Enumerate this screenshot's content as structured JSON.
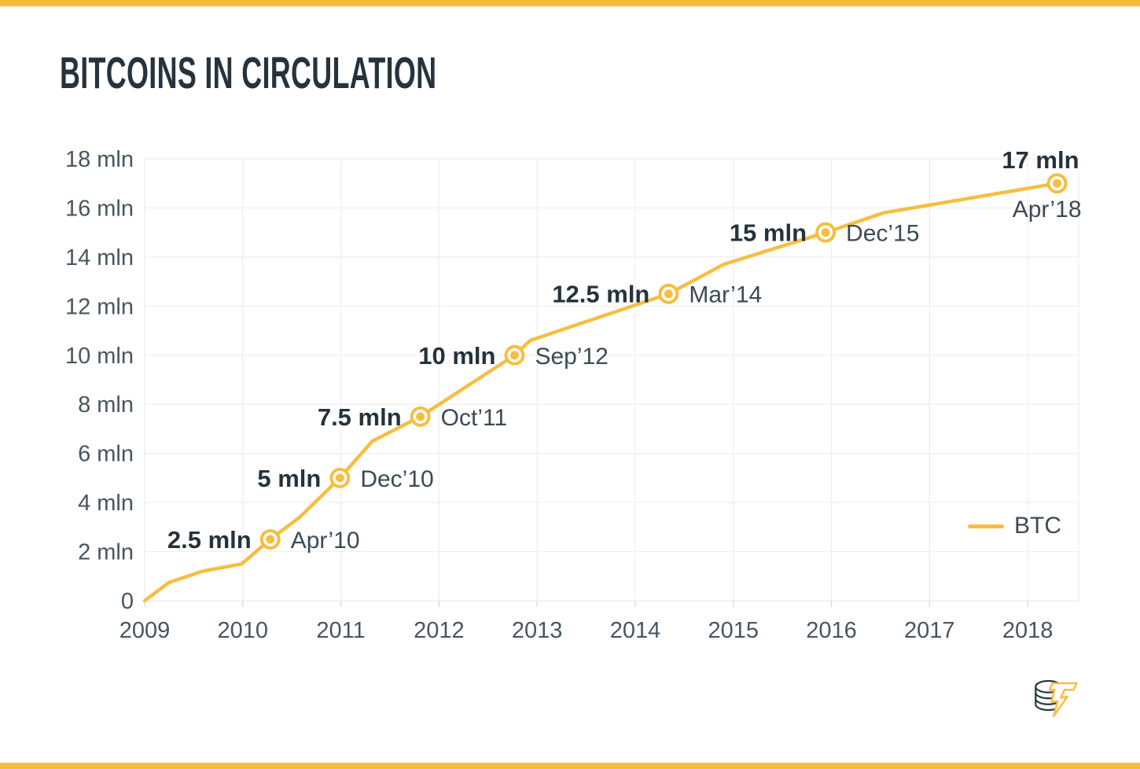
{
  "page": {
    "title": "BITCOINS IN CIRCULATION"
  },
  "theme": {
    "accent": "#F6BE41",
    "bar": "#F7BD37",
    "grid": "#EEEEEE",
    "tick": "#D9DDE0",
    "axis_text": "#46565F",
    "value_text": "#25323B",
    "date_text": "#3A4A53",
    "logo_coins": "#2C3A43",
    "logo_bolt": "#F6BE41"
  },
  "legend": {
    "label": "BTC"
  },
  "logo": {
    "icon": "coin-stack-lightning"
  },
  "chart_data": {
    "type": "line",
    "title": "BITCOINS IN CIRCULATION",
    "unit": "mln BTC",
    "xlim": [
      2009,
      2018.52
    ],
    "ylim": [
      0,
      18
    ],
    "grid": true,
    "legend_position": "right-middle",
    "x_ticks": [
      {
        "label": "2009",
        "year": 2009
      },
      {
        "label": "2010",
        "year": 2010
      },
      {
        "label": "2011",
        "year": 2011
      },
      {
        "label": "2012",
        "year": 2012
      },
      {
        "label": "2013",
        "year": 2013
      },
      {
        "label": "2014",
        "year": 2014
      },
      {
        "label": "2015",
        "year": 2015
      },
      {
        "label": "2016",
        "year": 2016
      },
      {
        "label": "2017",
        "year": 2017
      },
      {
        "label": "2018",
        "year": 2018
      }
    ],
    "y_ticks": [
      {
        "label": "0",
        "value": 0
      },
      {
        "label": "2 mln",
        "value": 2
      },
      {
        "label": "4 mln",
        "value": 4
      },
      {
        "label": "6 mln",
        "value": 6
      },
      {
        "label": "8 mln",
        "value": 8
      },
      {
        "label": "10 mln",
        "value": 10
      },
      {
        "label": "12 mln",
        "value": 12
      },
      {
        "label": "14 mln",
        "value": 14
      },
      {
        "label": "16 mln",
        "value": 16
      },
      {
        "label": "18 mln",
        "value": 18
      }
    ],
    "series": [
      {
        "name": "BTC",
        "color": "#F6BE41",
        "points": [
          [
            2009.0,
            0
          ],
          [
            2009.25,
            0.75
          ],
          [
            2009.59,
            1.2
          ],
          [
            2009.99,
            1.5
          ],
          [
            2010.28,
            2.5
          ],
          [
            2010.58,
            3.4
          ],
          [
            2010.99,
            5.0
          ],
          [
            2011.32,
            6.5
          ],
          [
            2011.81,
            7.5
          ],
          [
            2012.77,
            10.0
          ],
          [
            2012.93,
            10.6
          ],
          [
            2014.34,
            12.5
          ],
          [
            2014.9,
            13.7
          ],
          [
            2015.94,
            15.0
          ],
          [
            2016.53,
            15.8
          ],
          [
            2018.3,
            17.0
          ]
        ]
      }
    ],
    "milestones": [
      {
        "value": 2.5,
        "year": 2010.28,
        "value_label": "2.5 mln",
        "date_label": "Apr’10"
      },
      {
        "value": 5,
        "year": 2010.99,
        "value_label": "5 mln",
        "date_label": "Dec’10"
      },
      {
        "value": 7.5,
        "year": 2011.81,
        "value_label": "7.5 mln",
        "date_label": "Oct’11"
      },
      {
        "value": 10,
        "year": 2012.77,
        "value_label": "10 mln",
        "date_label": "Sep’12"
      },
      {
        "value": 12.5,
        "year": 2014.34,
        "value_label": "12.5 mln",
        "date_label": "Mar’14"
      },
      {
        "value": 15,
        "year": 2015.94,
        "value_label": "15 mln",
        "date_label": "Dec’15"
      },
      {
        "value": 17,
        "year": 2018.3,
        "value_label": "17 mln",
        "date_label": "Apr’18",
        "annotation_layout": "stacked"
      }
    ]
  }
}
